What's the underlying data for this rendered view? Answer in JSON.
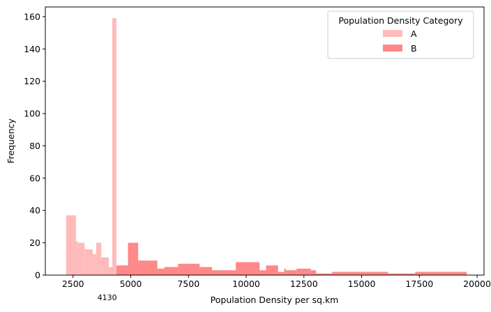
{
  "chart_data": {
    "type": "histogram",
    "xlabel": "Population Density per sq.km",
    "ylabel": "Frequency",
    "xlim": [
      1300,
      20300
    ],
    "ylim": [
      0,
      166
    ],
    "xticks": [
      2500,
      5000,
      7500,
      10000,
      12500,
      15000,
      17500,
      20000
    ],
    "xtick_labels": [
      "2500",
      "5000",
      "7500",
      "10000",
      "12500",
      "15000",
      "17500",
      "20000"
    ],
    "yticks": [
      0,
      20,
      40,
      60,
      80,
      100,
      120,
      140,
      160
    ],
    "ytick_labels": [
      "0",
      "20",
      "40",
      "60",
      "80",
      "100",
      "120",
      "140",
      "160"
    ],
    "annotation": {
      "text": "4130",
      "x": 4130
    },
    "legend": {
      "title": "Population Density Category",
      "placement": "upper right"
    },
    "series": [
      {
        "name": "A",
        "color": "#ffbbbb",
        "bins": [
          {
            "x0": 2200,
            "x1": 2630,
            "count": 37
          },
          {
            "x0": 2630,
            "x1": 2700,
            "count": 21
          },
          {
            "x0": 2700,
            "x1": 3000,
            "count": 20
          },
          {
            "x0": 3000,
            "x1": 3350,
            "count": 16
          },
          {
            "x0": 3350,
            "x1": 3500,
            "count": 13
          },
          {
            "x0": 3500,
            "x1": 3720,
            "count": 20
          },
          {
            "x0": 3720,
            "x1": 4050,
            "count": 11
          },
          {
            "x0": 4050,
            "x1": 4200,
            "count": 5
          },
          {
            "x0": 4200,
            "x1": 4380,
            "count": 159
          }
        ]
      },
      {
        "name": "B",
        "color": "#ff8888",
        "bins": [
          {
            "x0": 4380,
            "x1": 4880,
            "count": 6
          },
          {
            "x0": 4880,
            "x1": 5320,
            "count": 20
          },
          {
            "x0": 5320,
            "x1": 6150,
            "count": 9
          },
          {
            "x0": 6150,
            "x1": 6450,
            "count": 4
          },
          {
            "x0": 6450,
            "x1": 7050,
            "count": 5
          },
          {
            "x0": 7050,
            "x1": 7980,
            "count": 7
          },
          {
            "x0": 7980,
            "x1": 8520,
            "count": 5
          },
          {
            "x0": 8520,
            "x1": 9550,
            "count": 3
          },
          {
            "x0": 9550,
            "x1": 10580,
            "count": 8
          },
          {
            "x0": 10580,
            "x1": 10860,
            "count": 3
          },
          {
            "x0": 10860,
            "x1": 11380,
            "count": 6
          },
          {
            "x0": 11380,
            "x1": 11650,
            "count": 2
          },
          {
            "x0": 11650,
            "x1": 11720,
            "count": 4
          },
          {
            "x0": 11720,
            "x1": 12180,
            "count": 3
          },
          {
            "x0": 12180,
            "x1": 12800,
            "count": 4
          },
          {
            "x0": 12800,
            "x1": 13030,
            "count": 3
          },
          {
            "x0": 13030,
            "x1": 13720,
            "count": 1
          },
          {
            "x0": 13720,
            "x1": 16150,
            "count": 2
          },
          {
            "x0": 16150,
            "x1": 17320,
            "count": 1
          },
          {
            "x0": 17320,
            "x1": 19550,
            "count": 2
          }
        ]
      }
    ]
  }
}
